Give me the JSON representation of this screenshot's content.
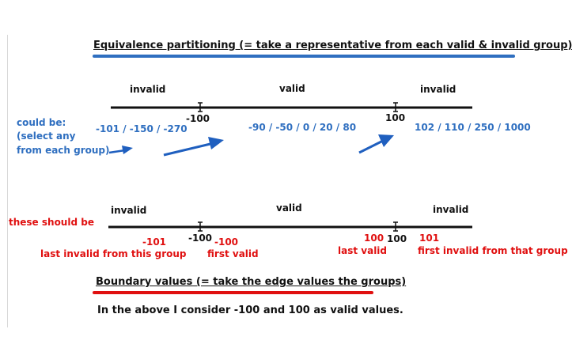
{
  "colors": {
    "blue": "#2f6fc0",
    "red": "#e01010",
    "black": "#111111",
    "arrow": "#1f5fbf"
  },
  "equivalence": {
    "title": "Equivalence partitioning (= take a representative from each valid & invalid group)",
    "invalid_left": "invalid",
    "valid": "valid",
    "invalid_right": "invalid",
    "tick_left": "-100",
    "tick_right": "100",
    "could_be_1": "could be:",
    "could_be_2": "(select any",
    "could_be_3": "from each group)",
    "examples_left": "-101 / -150 / -270",
    "examples_mid": "-90 / -50 / 0 / 20 / 80",
    "examples_right": "102  /  110 /  250 /  1000"
  },
  "boundary": {
    "these_should_be": "these should be",
    "invalid_left": "invalid",
    "valid": "valid",
    "invalid_right": "invalid",
    "tick_left": "-100",
    "tick_right": "100",
    "val_m101": "-101",
    "val_m100": "-100",
    "val_100": "100",
    "val_101": "101",
    "last_invalid_group": "last invalid from this group",
    "first_valid": "first valid",
    "last_valid": "last valid",
    "first_invalid_group": "first invalid from that group",
    "title": "Boundary values (= take the edge values the groups)",
    "note": "In the above I consider -100 and 100 as valid values."
  }
}
